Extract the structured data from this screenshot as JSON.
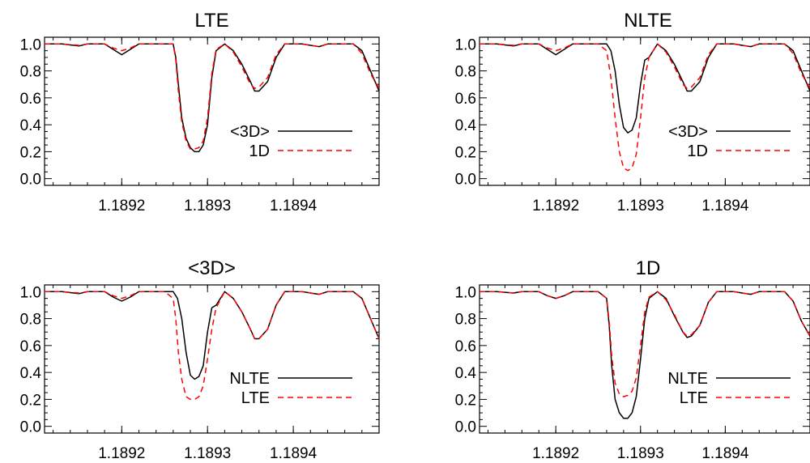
{
  "chart_data": [
    {
      "type": "line",
      "title": "LTE",
      "xlabel": "",
      "ylabel": "",
      "xlim": [
        1.18911,
        1.1895
      ],
      "ylim": [
        -0.05,
        1.05
      ],
      "yticks": [
        "1.0",
        "0.8",
        "0.6",
        "0.4",
        "0.2",
        "0.0"
      ],
      "xticks": [
        "1.1892",
        "1.1893",
        "1.1894"
      ],
      "legend_position": "center-right",
      "series": [
        {
          "name": "<3D>",
          "color": "#000000",
          "style": "solid",
          "x": [
            1.18911,
            1.18913,
            1.18915,
            1.18916,
            1.18917,
            1.18918,
            1.18919,
            1.1892,
            1.18921,
            1.18922,
            1.18924,
            1.18925,
            1.18926,
            1.189263,
            1.189266,
            1.18927,
            1.189275,
            1.18928,
            1.189285,
            1.18929,
            1.189295,
            1.1893,
            1.189305,
            1.18931,
            1.18932,
            1.18933,
            1.18934,
            1.18935,
            1.189355,
            1.18936,
            1.18937,
            1.18938,
            1.18939,
            1.1894,
            1.18941,
            1.18942,
            1.18943,
            1.18944,
            1.18945,
            1.18946,
            1.18947,
            1.18948,
            1.18949,
            1.1895
          ],
          "y": [
            1.0,
            1.0,
            0.985,
            1.0,
            1.0,
            1.0,
            0.96,
            0.92,
            0.96,
            1.0,
            1.0,
            1.0,
            1.0,
            0.9,
            0.7,
            0.45,
            0.3,
            0.23,
            0.2,
            0.2,
            0.25,
            0.4,
            0.75,
            0.95,
            1.0,
            0.95,
            0.85,
            0.72,
            0.65,
            0.65,
            0.72,
            0.9,
            1.0,
            1.0,
            1.0,
            0.99,
            0.98,
            1.0,
            1.0,
            1.0,
            1.0,
            0.95,
            0.8,
            0.65
          ]
        },
        {
          "name": "1D",
          "color": "#ff0000",
          "style": "dashed",
          "x": [
            1.18911,
            1.18913,
            1.18915,
            1.18916,
            1.18917,
            1.18918,
            1.18919,
            1.1892,
            1.18921,
            1.18922,
            1.18924,
            1.18925,
            1.18926,
            1.189263,
            1.189266,
            1.18927,
            1.189275,
            1.18928,
            1.189285,
            1.18929,
            1.189295,
            1.1893,
            1.189305,
            1.18931,
            1.18932,
            1.18933,
            1.18934,
            1.18935,
            1.189355,
            1.18936,
            1.18937,
            1.18938,
            1.18939,
            1.1894,
            1.18941,
            1.18942,
            1.18943,
            1.18944,
            1.18945,
            1.18946,
            1.18947,
            1.18948,
            1.18949,
            1.1895
          ],
          "y": [
            1.0,
            1.0,
            0.99,
            1.0,
            1.0,
            1.0,
            0.97,
            0.95,
            0.97,
            1.0,
            1.0,
            1.0,
            1.0,
            0.88,
            0.65,
            0.42,
            0.28,
            0.22,
            0.22,
            0.23,
            0.28,
            0.45,
            0.78,
            0.96,
            1.0,
            0.94,
            0.83,
            0.7,
            0.67,
            0.68,
            0.75,
            0.92,
            1.0,
            1.0,
            1.0,
            0.99,
            0.98,
            1.0,
            1.0,
            1.0,
            1.0,
            0.93,
            0.78,
            0.67
          ]
        }
      ]
    },
    {
      "type": "line",
      "title": "NLTE",
      "xlabel": "",
      "ylabel": "",
      "xlim": [
        1.18911,
        1.1895
      ],
      "ylim": [
        -0.05,
        1.05
      ],
      "yticks": [
        "1.0",
        "0.8",
        "0.6",
        "0.4",
        "0.2",
        "0.0"
      ],
      "xticks": [
        "1.1892",
        "1.1893",
        "1.1894"
      ],
      "legend_position": "center-right",
      "series": [
        {
          "name": "<3D>",
          "color": "#000000",
          "style": "solid",
          "x": [
            1.18911,
            1.18913,
            1.18915,
            1.18916,
            1.18917,
            1.18918,
            1.18919,
            1.1892,
            1.18921,
            1.18922,
            1.18924,
            1.18925,
            1.18926,
            1.189265,
            1.18927,
            1.189275,
            1.18928,
            1.189285,
            1.18929,
            1.189295,
            1.1893,
            1.189305,
            1.18931,
            1.18932,
            1.18933,
            1.18934,
            1.18935,
            1.189355,
            1.18936,
            1.18937,
            1.18938,
            1.18939,
            1.1894,
            1.18941,
            1.18942,
            1.18943,
            1.18944,
            1.18945,
            1.18946,
            1.18947,
            1.18948,
            1.18949,
            1.1895
          ],
          "y": [
            1.0,
            1.0,
            0.985,
            1.0,
            1.0,
            1.0,
            0.96,
            0.92,
            0.96,
            1.0,
            1.0,
            1.0,
            1.0,
            0.95,
            0.8,
            0.55,
            0.38,
            0.34,
            0.36,
            0.45,
            0.7,
            0.88,
            0.9,
            1.0,
            0.95,
            0.85,
            0.72,
            0.65,
            0.65,
            0.72,
            0.9,
            1.0,
            1.0,
            1.0,
            0.99,
            0.98,
            1.0,
            1.0,
            1.0,
            1.0,
            0.95,
            0.8,
            0.65
          ]
        },
        {
          "name": "1D",
          "color": "#ff0000",
          "style": "dashed",
          "x": [
            1.18911,
            1.18913,
            1.18915,
            1.18916,
            1.18917,
            1.18918,
            1.18919,
            1.1892,
            1.18921,
            1.18922,
            1.18924,
            1.18925,
            1.18926,
            1.189265,
            1.18927,
            1.189275,
            1.18928,
            1.189285,
            1.18929,
            1.189295,
            1.1893,
            1.189305,
            1.18931,
            1.18932,
            1.18933,
            1.18934,
            1.18935,
            1.189355,
            1.18936,
            1.18937,
            1.18938,
            1.18939,
            1.1894,
            1.18941,
            1.18942,
            1.18943,
            1.18944,
            1.18945,
            1.18946,
            1.18947,
            1.18948,
            1.18949,
            1.1895
          ],
          "y": [
            1.0,
            1.0,
            0.99,
            1.0,
            1.0,
            1.0,
            0.97,
            0.95,
            0.97,
            1.0,
            1.0,
            1.0,
            0.95,
            0.75,
            0.45,
            0.2,
            0.08,
            0.06,
            0.08,
            0.18,
            0.45,
            0.75,
            0.9,
            1.0,
            0.94,
            0.83,
            0.7,
            0.67,
            0.68,
            0.75,
            0.92,
            1.0,
            1.0,
            1.0,
            0.99,
            0.98,
            1.0,
            1.0,
            1.0,
            1.0,
            0.93,
            0.78,
            0.67
          ]
        }
      ]
    },
    {
      "type": "line",
      "title": "<3D>",
      "xlabel": "",
      "ylabel": "",
      "xlim": [
        1.18911,
        1.1895
      ],
      "ylim": [
        -0.05,
        1.05
      ],
      "yticks": [
        "1.0",
        "0.8",
        "0.6",
        "0.4",
        "0.2",
        "0.0"
      ],
      "xticks": [
        "1.1892",
        "1.1893",
        "1.1894"
      ],
      "legend_position": "center-right",
      "series": [
        {
          "name": "NLTE",
          "color": "#000000",
          "style": "solid",
          "x": [
            1.18911,
            1.18913,
            1.18915,
            1.18916,
            1.18917,
            1.18918,
            1.18919,
            1.1892,
            1.18921,
            1.18922,
            1.18924,
            1.18925,
            1.18926,
            1.189265,
            1.18927,
            1.189275,
            1.18928,
            1.189285,
            1.18929,
            1.189295,
            1.1893,
            1.189305,
            1.18931,
            1.18932,
            1.18933,
            1.18934,
            1.18935,
            1.189355,
            1.18936,
            1.18937,
            1.18938,
            1.18939,
            1.1894,
            1.18941,
            1.18942,
            1.18943,
            1.18944,
            1.18945,
            1.18946,
            1.18947,
            1.18948,
            1.18949,
            1.1895
          ],
          "y": [
            1.0,
            1.0,
            0.985,
            1.0,
            1.0,
            1.0,
            0.96,
            0.93,
            0.96,
            1.0,
            1.0,
            1.0,
            1.0,
            0.95,
            0.8,
            0.55,
            0.38,
            0.35,
            0.37,
            0.45,
            0.7,
            0.88,
            0.9,
            1.0,
            0.95,
            0.85,
            0.72,
            0.65,
            0.65,
            0.72,
            0.9,
            1.0,
            1.0,
            1.0,
            0.99,
            0.98,
            1.0,
            1.0,
            1.0,
            1.0,
            0.95,
            0.8,
            0.65
          ]
        },
        {
          "name": "LTE",
          "color": "#ff0000",
          "style": "dashed",
          "x": [
            1.18911,
            1.18913,
            1.18915,
            1.18916,
            1.18917,
            1.18918,
            1.18919,
            1.1892,
            1.18921,
            1.18922,
            1.18924,
            1.18925,
            1.18926,
            1.189263,
            1.189266,
            1.18927,
            1.189275,
            1.18928,
            1.189285,
            1.18929,
            1.189295,
            1.1893,
            1.189305,
            1.18931,
            1.18932,
            1.18933,
            1.18934,
            1.18935,
            1.189355,
            1.18936,
            1.18937,
            1.18938,
            1.18939,
            1.1894,
            1.18941,
            1.18942,
            1.18943,
            1.18944,
            1.18945,
            1.18946,
            1.18947,
            1.18948,
            1.18949,
            1.1895
          ],
          "y": [
            1.0,
            1.0,
            0.99,
            1.0,
            1.0,
            1.0,
            0.97,
            0.95,
            0.97,
            1.0,
            1.0,
            1.0,
            0.95,
            0.8,
            0.55,
            0.35,
            0.22,
            0.2,
            0.2,
            0.22,
            0.3,
            0.5,
            0.72,
            0.88,
            1.0,
            0.95,
            0.85,
            0.72,
            0.65,
            0.65,
            0.72,
            0.9,
            1.0,
            1.0,
            1.0,
            0.99,
            0.98,
            1.0,
            1.0,
            1.0,
            1.0,
            0.95,
            0.8,
            0.65
          ]
        }
      ]
    },
    {
      "type": "line",
      "title": "1D",
      "xlabel": "",
      "ylabel": "",
      "xlim": [
        1.18911,
        1.1895
      ],
      "ylim": [
        -0.05,
        1.05
      ],
      "yticks": [
        "1.0",
        "0.8",
        "0.6",
        "0.4",
        "0.2",
        "0.0"
      ],
      "xticks": [
        "1.1892",
        "1.1893",
        "1.1894"
      ],
      "legend_position": "center-right",
      "series": [
        {
          "name": "NLTE",
          "color": "#000000",
          "style": "solid",
          "x": [
            1.18911,
            1.18913,
            1.18915,
            1.18916,
            1.18917,
            1.18918,
            1.18919,
            1.1892,
            1.18921,
            1.18922,
            1.18924,
            1.18925,
            1.18926,
            1.189263,
            1.189266,
            1.18927,
            1.189275,
            1.18928,
            1.189285,
            1.18929,
            1.189295,
            1.1893,
            1.189305,
            1.18931,
            1.18932,
            1.18933,
            1.18934,
            1.18935,
            1.189355,
            1.18936,
            1.18937,
            1.18938,
            1.18939,
            1.1894,
            1.18941,
            1.18942,
            1.18943,
            1.18944,
            1.18945,
            1.18946,
            1.18947,
            1.18948,
            1.18949,
            1.1895
          ],
          "y": [
            1.0,
            1.0,
            0.99,
            1.0,
            1.0,
            1.0,
            0.97,
            0.95,
            0.97,
            1.0,
            1.0,
            1.0,
            0.95,
            0.75,
            0.45,
            0.2,
            0.1,
            0.06,
            0.06,
            0.1,
            0.22,
            0.5,
            0.8,
            0.95,
            1.0,
            0.95,
            0.82,
            0.7,
            0.66,
            0.67,
            0.75,
            0.92,
            1.0,
            1.0,
            1.0,
            0.99,
            0.98,
            1.0,
            1.0,
            1.0,
            1.0,
            0.93,
            0.78,
            0.67
          ]
        },
        {
          "name": "LTE",
          "color": "#ff0000",
          "style": "dashed",
          "x": [
            1.18911,
            1.18913,
            1.18915,
            1.18916,
            1.18917,
            1.18918,
            1.18919,
            1.1892,
            1.18921,
            1.18922,
            1.18924,
            1.18925,
            1.18926,
            1.189263,
            1.189266,
            1.18927,
            1.189275,
            1.18928,
            1.189285,
            1.18929,
            1.189295,
            1.1893,
            1.189305,
            1.18931,
            1.18932,
            1.18933,
            1.18934,
            1.18935,
            1.189355,
            1.18936,
            1.18937,
            1.18938,
            1.18939,
            1.1894,
            1.18941,
            1.18942,
            1.18943,
            1.18944,
            1.18945,
            1.18946,
            1.18947,
            1.18948,
            1.18949,
            1.1895
          ],
          "y": [
            1.0,
            1.0,
            0.99,
            1.0,
            1.0,
            1.0,
            0.97,
            0.95,
            0.97,
            1.0,
            1.0,
            1.0,
            0.95,
            0.78,
            0.52,
            0.32,
            0.24,
            0.22,
            0.23,
            0.26,
            0.36,
            0.6,
            0.85,
            0.96,
            1.0,
            0.94,
            0.83,
            0.7,
            0.67,
            0.68,
            0.75,
            0.92,
            1.0,
            1.0,
            1.0,
            0.99,
            0.98,
            1.0,
            1.0,
            1.0,
            1.0,
            0.93,
            0.78,
            0.67
          ]
        }
      ]
    }
  ]
}
